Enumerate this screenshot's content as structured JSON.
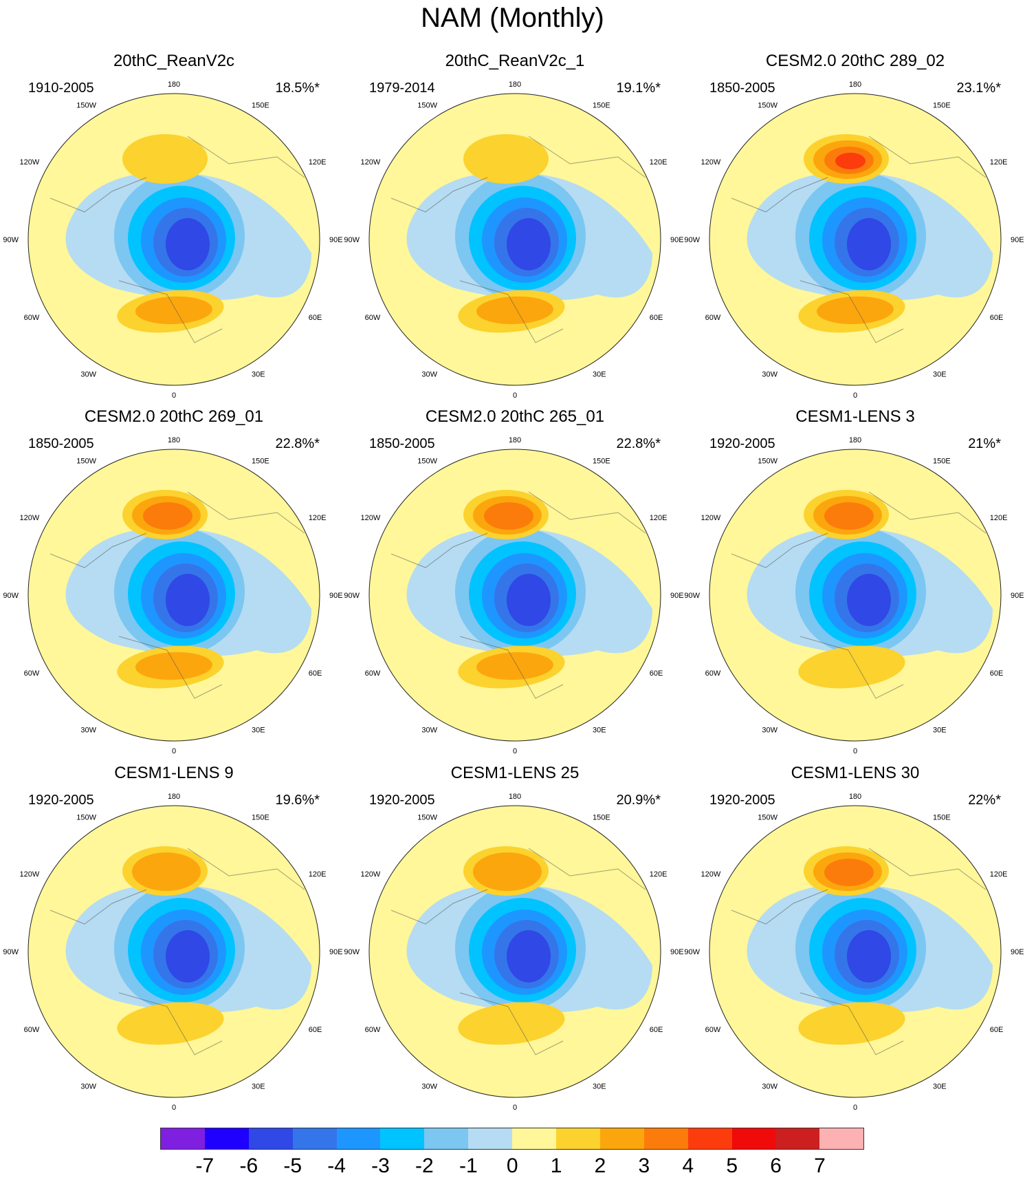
{
  "title": "NAM (Monthly)",
  "longitude_labels": [
    "180",
    "150E",
    "120E",
    "90E",
    "60E",
    "30E",
    "0",
    "30W",
    "60W",
    "90W",
    "120W",
    "150W"
  ],
  "panels": [
    {
      "title": "20thC_ReanV2c",
      "period": "1910-2005",
      "variance": "18.5%*"
    },
    {
      "title": "20thC_ReanV2c_1",
      "period": "1979-2014",
      "variance": "19.1%*"
    },
    {
      "title": "CESM2.0 20thC 289_02",
      "period": "1850-2005",
      "variance": "23.1%*"
    },
    {
      "title": "CESM2.0 20thC 269_01",
      "period": "1850-2005",
      "variance": "22.8%*"
    },
    {
      "title": "CESM2.0 20thC 265_01",
      "period": "1850-2005",
      "variance": "22.8%*"
    },
    {
      "title": "CESM1-LENS 3",
      "period": "1920-2005",
      "variance": "21%*"
    },
    {
      "title": "CESM1-LENS 9",
      "period": "1920-2005",
      "variance": "19.6%*"
    },
    {
      "title": "CESM1-LENS 25",
      "period": "1920-2005",
      "variance": "20.9%*"
    },
    {
      "title": "CESM1-LENS 30",
      "period": "1920-2005",
      "variance": "22%*"
    }
  ],
  "colorbar": {
    "labels": [
      "-7",
      "-6",
      "-5",
      "-4",
      "-3",
      "-2",
      "-1",
      "0",
      "1",
      "2",
      "3",
      "4",
      "5",
      "6",
      "7"
    ],
    "colors": [
      "#7f1fe0",
      "#1f00ff",
      "#2f48e6",
      "#3575ea",
      "#1e96ff",
      "#00c3ff",
      "#7cc6f2",
      "#b5dcf2",
      "#fff799",
      "#fcd22e",
      "#fca60d",
      "#fc7c0b",
      "#fc3c0d",
      "#f00a0a",
      "#cc1f1f",
      "#fcb2b2"
    ]
  }
}
